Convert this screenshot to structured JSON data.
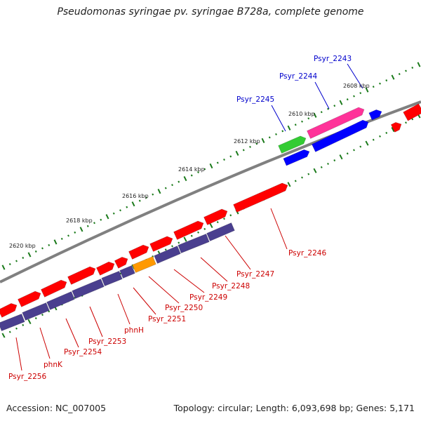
{
  "title": "Pseudomonas syringae pv. syringae B728a, complete genome",
  "footer": {
    "accession": "Accession: NC_007005",
    "summary": "Topology: circular; Length: 6,093,698 bp; Genes: 5,171"
  },
  "colors": {
    "backbone": "#808080",
    "tick_major": "#1a7a1a",
    "gene_red": "#ff0000",
    "gene_blue": "#0000ff",
    "gene_navy": "#4a3f8f",
    "gene_pink": "#ff3399",
    "gene_green": "#33cc33",
    "gene_orange": "#ff9900",
    "label_red": "#cc0000",
    "label_blue": "#0000cc"
  },
  "kbp_labels": [
    "2608 kbp",
    "2610 kbp",
    "2612 kbp",
    "2614 kbp",
    "2616 kbp",
    "2618 kbp",
    "2620 kbp"
  ],
  "gene_labels_top": [
    "Psyr_2243",
    "Psyr_2244",
    "Psyr_2245"
  ],
  "gene_labels_bottom": [
    "Psyr_2246",
    "Psyr_2247",
    "Psyr_2248",
    "Psyr_2249",
    "Psyr_2250",
    "Psyr_2251",
    "phnH",
    "Psyr_2253",
    "Psyr_2254",
    "phnK",
    "Psyr_2256"
  ]
}
